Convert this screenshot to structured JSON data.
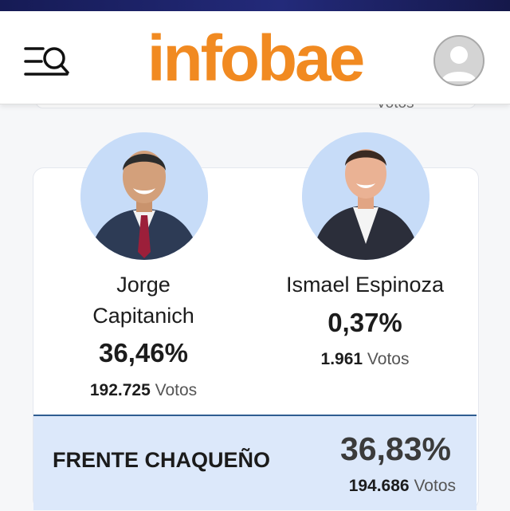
{
  "brand": {
    "name": "infobae",
    "color": "#f18a21",
    "top_strip_color": "#1b2166"
  },
  "header": {
    "menu_icon": "menu-search-icon",
    "profile_icon": "user-avatar-icon"
  },
  "previous_card": {
    "partial_text": "Votos"
  },
  "candidates": [
    {
      "name_line1": "Jorge",
      "name_line2": "Capitanich",
      "percent": "36,46%",
      "votes": "192.725",
      "votes_label": "Votos"
    },
    {
      "name_line1": "Ismael Espinoza",
      "name_line2": "",
      "percent": "0,37%",
      "votes": "1.961",
      "votes_label": "Votos"
    }
  ],
  "total": {
    "party": "FRENTE CHAQUEÑO",
    "percent": "36,83%",
    "votes": "194.686",
    "votes_label": "Votos",
    "accent": "#2f5d91",
    "background": "#dce8fa"
  }
}
